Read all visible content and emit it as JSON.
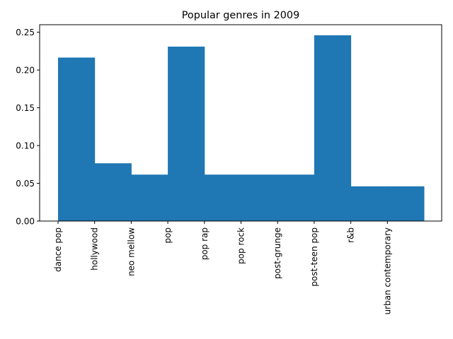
{
  "chart_data": {
    "type": "bar",
    "title": "Popular genres in 2009",
    "xlabel": "",
    "ylabel": "",
    "categories": [
      "dance pop",
      "hollywood",
      "neo mellow",
      "pop",
      "pop rap",
      "pop rock",
      "post-grunge",
      "post-teen pop",
      "r&b",
      "urban contemporary"
    ],
    "values": [
      0.2165,
      0.0765,
      0.0615,
      0.231,
      0.0615,
      0.0615,
      0.0615,
      0.246,
      0.046,
      0.046
    ],
    "ylim": [
      0,
      0.26
    ],
    "yticks": [
      0.0,
      0.05,
      0.1,
      0.15,
      0.2,
      0.25
    ],
    "ytick_labels": [
      "0.00",
      "0.05",
      "0.10",
      "0.15",
      "0.20",
      "0.25"
    ],
    "bar_color": "#1f77b4",
    "grid": false
  }
}
